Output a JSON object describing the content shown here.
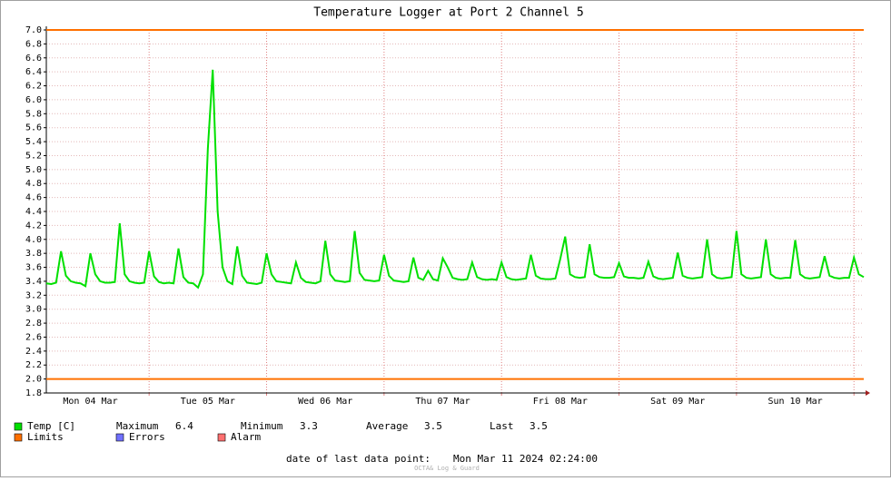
{
  "chart_data": {
    "type": "line",
    "title": "Temperature Logger at Port 2 Channel 5",
    "xlim": [
      3,
      170
    ],
    "xticks": [
      {
        "value": 12,
        "label": "Mon 04 Mar"
      },
      {
        "value": 36,
        "label": "Tue 05 Mar"
      },
      {
        "value": 60,
        "label": "Wed 06 Mar"
      },
      {
        "value": 84,
        "label": "Thu 07 Mar"
      },
      {
        "value": 108,
        "label": "Fri 08 Mar"
      },
      {
        "value": 132,
        "label": "Sat 09 Mar"
      },
      {
        "value": 156,
        "label": "Sun 10 Mar"
      }
    ],
    "xgrid": [
      24,
      48,
      72,
      96,
      120,
      144,
      168
    ],
    "ylim": [
      1.8,
      7.0
    ],
    "yticks": [
      1.8,
      {
        "value": 2,
        "label": "2.0"
      },
      2.2,
      2.4,
      2.6,
      2.8,
      {
        "value": 3,
        "label": "3.0"
      },
      3.2,
      3.4,
      3.6,
      3.8,
      {
        "value": 4,
        "label": "4.0"
      },
      4.2,
      4.4,
      4.6,
      4.8,
      {
        "value": 5,
        "label": "5.0"
      },
      5.2,
      5.4,
      5.6,
      5.8,
      {
        "value": 6,
        "label": "6.0"
      },
      6.2,
      6.4,
      6.6,
      6.8,
      {
        "value": 7,
        "label": "7.0"
      }
    ],
    "grid": true,
    "series": [
      {
        "name": "Temp [C]",
        "color": "#00e000",
        "values": [
          3.37,
          3.36,
          3.38,
          3.83,
          3.48,
          3.4,
          3.38,
          3.37,
          3.33,
          3.8,
          3.5,
          3.4,
          3.38,
          3.38,
          3.39,
          4.23,
          3.5,
          3.4,
          3.38,
          3.37,
          3.38,
          3.83,
          3.47,
          3.39,
          3.37,
          3.38,
          3.37,
          3.87,
          3.46,
          3.38,
          3.37,
          3.31,
          3.5,
          5.3,
          6.43,
          4.4,
          3.6,
          3.4,
          3.36,
          3.9,
          3.48,
          3.38,
          3.37,
          3.36,
          3.38,
          3.8,
          3.5,
          3.4,
          3.39,
          3.38,
          3.37,
          3.67,
          3.45,
          3.39,
          3.38,
          3.37,
          3.4,
          3.98,
          3.5,
          3.41,
          3.4,
          3.39,
          3.4,
          4.12,
          3.52,
          3.42,
          3.41,
          3.4,
          3.41,
          3.78,
          3.48,
          3.41,
          3.4,
          3.39,
          3.4,
          3.74,
          3.45,
          3.42,
          3.55,
          3.43,
          3.41,
          3.73,
          3.6,
          3.45,
          3.43,
          3.42,
          3.43,
          3.67,
          3.46,
          3.43,
          3.42,
          3.43,
          3.42,
          3.67,
          3.46,
          3.43,
          3.42,
          3.43,
          3.44,
          3.78,
          3.48,
          3.44,
          3.43,
          3.43,
          3.44,
          3.72,
          4.04,
          3.5,
          3.46,
          3.45,
          3.46,
          3.93,
          3.5,
          3.46,
          3.45,
          3.45,
          3.46,
          3.66,
          3.47,
          3.45,
          3.45,
          3.44,
          3.45,
          3.68,
          3.47,
          3.44,
          3.43,
          3.44,
          3.45,
          3.81,
          3.48,
          3.45,
          3.44,
          3.45,
          3.46,
          4.0,
          3.5,
          3.45,
          3.44,
          3.45,
          3.46,
          4.12,
          3.5,
          3.45,
          3.44,
          3.45,
          3.46,
          4.0,
          3.5,
          3.45,
          3.44,
          3.45,
          3.45,
          3.99,
          3.5,
          3.45,
          3.44,
          3.45,
          3.46,
          3.76,
          3.48,
          3.45,
          3.44,
          3.45,
          3.45,
          3.74,
          3.5,
          3.46
        ]
      }
    ],
    "limits": {
      "name": "Limits",
      "color": "#ff7000",
      "values": [
        7,
        2
      ]
    },
    "legend_extra": [
      {
        "name": "Errors",
        "color": "#7070ff"
      },
      {
        "name": "Alarm",
        "color": "#ff7070"
      }
    ],
    "stats": [
      {
        "label": "Maximum",
        "value": 6.4
      },
      {
        "label": "Minimum",
        "value": 3.3
      },
      {
        "label": "Average",
        "value": 3.5
      },
      {
        "label": "Last",
        "value": 3.5
      }
    ],
    "footer_label": "date of last data point:",
    "footer_value": "Mon Mar 11 2024 02:24:00",
    "credit": "OCTA& Log & Guard"
  }
}
